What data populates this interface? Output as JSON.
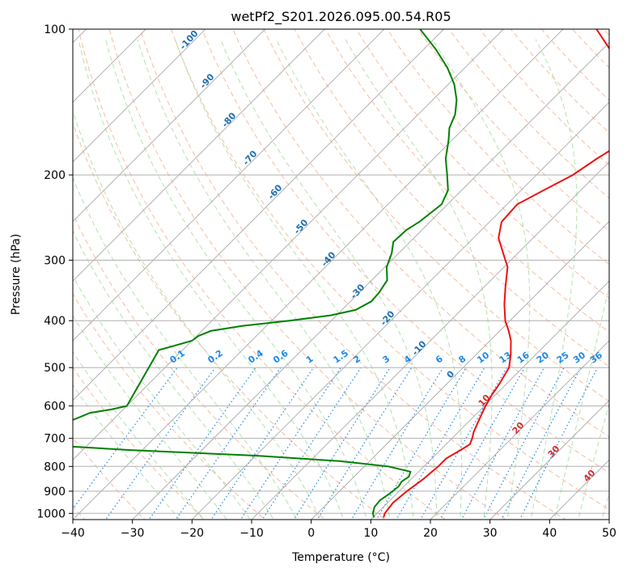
{
  "chart_data": {
    "type": "line",
    "subtype": "skew-T log-P",
    "title": "wetPf2_S201.2026.095.00.54.R05",
    "xlabel": "Temperature (°C)",
    "ylabel": "Pressure (hPa)",
    "xlim": [
      -40,
      50
    ],
    "ylim": [
      1030,
      100
    ],
    "yscale": "log",
    "grid": true,
    "x_ticks": [
      "−40",
      "−30",
      "−20",
      "−10",
      "0",
      "10",
      "20",
      "30",
      "40",
      "50"
    ],
    "y_ticks": [
      {
        "p": 100,
        "label": "100"
      },
      {
        "p": 200,
        "label": "200"
      },
      {
        "p": 300,
        "label": "300"
      },
      {
        "p": 400,
        "label": "400"
      },
      {
        "p": 500,
        "label": "500"
      },
      {
        "p": 600,
        "label": "600"
      },
      {
        "p": 700,
        "label": "700"
      },
      {
        "p": 800,
        "label": "800"
      },
      {
        "p": 900,
        "label": "900"
      },
      {
        "p": 1000,
        "label": "1000"
      }
    ],
    "temperature_profile": {
      "color": "#ee1111",
      "points": [
        [
          1020,
          11.8
        ],
        [
          1000,
          11.3
        ],
        [
          950,
          10.9
        ],
        [
          900,
          11.3
        ],
        [
          850,
          12.0
        ],
        [
          800,
          12.4
        ],
        [
          770,
          12.4
        ],
        [
          740,
          13.4
        ],
        [
          720,
          14.0
        ],
        [
          700,
          13.4
        ],
        [
          680,
          12.6
        ],
        [
          650,
          11.7
        ],
        [
          620,
          10.8
        ],
        [
          600,
          10.2
        ],
        [
          570,
          9.4
        ],
        [
          540,
          8.8
        ],
        [
          500,
          7.7
        ],
        [
          470,
          5.8
        ],
        [
          440,
          3.5
        ],
        [
          420,
          1.5
        ],
        [
          400,
          -0.8
        ],
        [
          370,
          -3.7
        ],
        [
          340,
          -6.5
        ],
        [
          310,
          -9.4
        ],
        [
          290,
          -12.5
        ],
        [
          270,
          -15.8
        ],
        [
          250,
          -18.0
        ],
        [
          230,
          -18.3
        ],
        [
          215,
          -16.2
        ],
        [
          200,
          -13.9
        ],
        [
          185,
          -12.6
        ],
        [
          170,
          -10.8
        ],
        [
          160,
          -12.2
        ],
        [
          150,
          -14.3
        ],
        [
          140,
          -16.2
        ],
        [
          130,
          -20.3
        ],
        [
          120,
          -24.0
        ],
        [
          110,
          -28.8
        ],
        [
          100,
          -34.4
        ]
      ]
    },
    "dewpoint_profile": {
      "color": "#008000",
      "points": [
        [
          1020,
          10.2
        ],
        [
          1000,
          9.3
        ],
        [
          970,
          8.5
        ],
        [
          940,
          8.3
        ],
        [
          910,
          8.8
        ],
        [
          880,
          9.1
        ],
        [
          860,
          8.8
        ],
        [
          840,
          9.2
        ],
        [
          820,
          8.6
        ],
        [
          800,
          4.0
        ],
        [
          780,
          -5.0
        ],
        [
          760,
          -20.0
        ],
        [
          740,
          -42.0
        ],
        [
          725,
          -55.0
        ],
        [
          645,
          -57.0
        ],
        [
          620,
          -55.0
        ],
        [
          610,
          -52.0
        ],
        [
          600,
          -50.0
        ],
        [
          460,
          -54.0
        ],
        [
          450,
          -52.0
        ],
        [
          440,
          -50.0
        ],
        [
          430,
          -49.7
        ],
        [
          420,
          -48.5
        ],
        [
          410,
          -44.0
        ],
        [
          400,
          -37.0
        ],
        [
          390,
          -31.0
        ],
        [
          380,
          -27.7
        ],
        [
          365,
          -26.5
        ],
        [
          350,
          -26.7
        ],
        [
          330,
          -27.4
        ],
        [
          310,
          -29.7
        ],
        [
          290,
          -31.2
        ],
        [
          275,
          -32.8
        ],
        [
          260,
          -32.6
        ],
        [
          250,
          -31.8
        ],
        [
          230,
          -31.0
        ],
        [
          215,
          -32.3
        ],
        [
          200,
          -35.0
        ],
        [
          185,
          -38.0
        ],
        [
          170,
          -40.5
        ],
        [
          160,
          -42.5
        ],
        [
          150,
          -43.8
        ],
        [
          140,
          -46.0
        ],
        [
          130,
          -49.0
        ],
        [
          120,
          -53.0
        ],
        [
          110,
          -58.0
        ],
        [
          100,
          -64.0
        ]
      ]
    },
    "isotherms_every_c": 10,
    "dry_adiabat_labels": [
      "-100",
      "-90",
      "-80",
      "-70",
      "-60",
      "-50",
      "-40",
      "-30",
      "-20",
      "-10",
      "0",
      "10",
      "20",
      "30",
      "40"
    ],
    "mixing_ratio_labels": [
      "0.1",
      "0.2",
      "0.4",
      "0.6",
      "1",
      "1.5",
      "2",
      "3",
      "4",
      "6",
      "8",
      "10",
      "13",
      "16",
      "20",
      "25",
      "30",
      "36"
    ],
    "mixing_ratio_values": [
      0.1,
      0.2,
      0.4,
      0.6,
      1,
      1.5,
      2,
      3,
      4,
      6,
      8,
      10,
      13,
      16,
      20,
      25,
      30,
      36
    ],
    "colors": {
      "isobar": "#b0b0b0",
      "isotherm": "#a8a8a8",
      "dry_adiabat": "#f4a582",
      "moist_adiabat": "#a1d99b",
      "mixing_ratio": "#1e88e5",
      "dry_adiabat_label": "#1f6fb0",
      "moist_label": "#d32f2f"
    }
  }
}
